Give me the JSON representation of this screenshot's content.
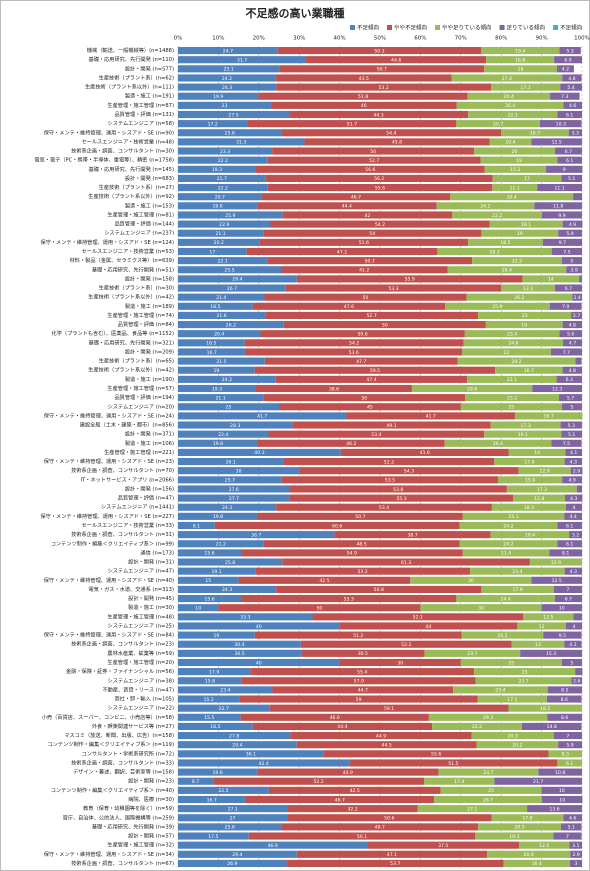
{
  "chart_data": {
    "type": "stacked_barh",
    "title": "不足感の高い業職種",
    "xlim": [
      0,
      100
    ],
    "xticks": [
      {
        "value": 0,
        "label": "0%"
      },
      {
        "value": 10,
        "label": "10%"
      },
      {
        "value": 20,
        "label": "20%"
      },
      {
        "value": 30,
        "label": "30%"
      },
      {
        "value": 40,
        "label": "40%"
      },
      {
        "value": 50,
        "label": "50%"
      },
      {
        "value": 60,
        "label": "60%"
      },
      {
        "value": 70,
        "label": "70%"
      },
      {
        "value": 80,
        "label": "80%"
      },
      {
        "value": 90,
        "label": "90%"
      },
      {
        "value": 100,
        "label": "100%"
      }
    ],
    "grid": true,
    "legend": "top-right",
    "categories": [
      "機械（輸送、一般機械等）(n=1488)",
      "基礎・応用研究、先行開発 (n=110)",
      "設計・開発 (n=577)",
      "生産技術（プラント系）(n=62)",
      "生産技術（プラント系以外）(n=111)",
      "製造・施工 (n=191)",
      "生産管理・施工管理 (n=87)",
      "品質管理・評価 (n=131)",
      "システムエンジニア (n=58)",
      "保守・メンテ・維持管理、運用・シスアド・SE (n=90)",
      "セールスエンジニア・技術営業 (n=48)",
      "技術系企画・調査、コンサルタント (n=30)",
      "電気・電子（PC・携帯・半導体、重電等）、精密 (n=1758)",
      "基礎・応用研究、先行開発 (n=145)",
      "設計・開発 (n=683)",
      "生産技術（プラント系）(n=27)",
      "生産技術（プラント系以外）(n=92)",
      "製造・施工 (n=153)",
      "生産管理・施工管理 (n=81)",
      "品質管理・評価 (n=144)",
      "システムエンジニア (n=237)",
      "保守・メンテ・維持管理、運用・シスアド・SE (n=124)",
      "セールスエンジニア・技術営業 (n=53)",
      "材料・製品（金属、セラミクス等）(n=639)",
      "基礎・応用研究、先行開発 (n=51)",
      "設計・開発 (n=158)",
      "生産技術（プラント系）(n=30)",
      "生産技術（プラント系以外）(n=42)",
      "製造・施工 (n=189)",
      "生産管理・施工管理 (n=74)",
      "品質管理・評価 (n=84)",
      "化学（プラントも含む）、医薬品、食品等 (n=1152)",
      "基礎・応用研究、先行開発 (n=321)",
      "設計・開発 (n=209)",
      "生産技術（プラント系）(n=65)",
      "生産技術（プラント系以外）(n=42)",
      "製造・施工 (n=190)",
      "生産管理・施工管理 (n=57)",
      "品質管理・評価 (n=194)",
      "システムエンジニア (n=20)",
      "保守・メンテ・維持管理、運用・シスアド・SE (n=24)",
      "建設全般（土木・建築・都市）(n=856)",
      "設計・開発 (n=371)",
      "製造・施工 (n=106)",
      "生産管理・施工管理 (n=221)",
      "保守・メンテ・維持管理、運用・シスアド・SE (n=23)",
      "技術系企画・調査、コンサルタント (n=70)",
      "IT・ネットサービス・アプリ (n=2066)",
      "設計・開発 (n=156)",
      "品質管理・評価 (n=47)",
      "システムエンジニア (n=1441)",
      "保守・メンテ・維持管理、運用・シスアド・SE (n=227)",
      "セールスエンジニア・技術営業 (n=33)",
      "技術系企画・調査、コンサルタント (n=31)",
      "コンテンツ制作・編集＜クリエイティブ系＞ (n=99)",
      "通信 (n=173)",
      "設計・開発 (n=31)",
      "システムエンジニア (n=47)",
      "保守・メンテ・維持管理、運用・シスアド・SE (n=40)",
      "電気・ガス・水道、交通系 (n=313)",
      "設計・開発 (n=45)",
      "製造・施工 (n=30)",
      "生産管理・施工管理 (n=48)",
      "システムエンジニア (n=25)",
      "保守・メンテ・維持管理、運用・シスアド・SE (n=84)",
      "技術系企画・調査、コンサルタント (n=23)",
      "農林水産業、鉱業等 (n=59)",
      "生産管理・施工管理 (n=20)",
      "金融・保険・証券・ファイナンシャル (n=56)",
      "システムエンジニア (n=38)",
      "不動産、賃貸・リース (n=47)",
      "商社・卸・輸入 (n=105)",
      "システムエンジニア (n=22)",
      "小売（百貨店、スーパー、コンビニ、小売店等）(n=58)",
      "外食・娯楽関連サービス等 (n=27)",
      "マスコミ（放送、新聞、出版、広告）(n=158)",
      "コンテンツ制作・編集＜クリエイティブ系＞ (n=119)",
      "コンサルタント・学術系研究所 (n=72)",
      "技術系企画・調査、コンサルタント (n=33)",
      "デザイン・著述、翻訳、芸術家等 (n=158)",
      "設計・開発 (n=23)",
      "コンテンツ制作・編集＜クリエイティブ系＞ (n=40)",
      "病院、医療 (n=30)",
      "教育（保育・幼稚園等を除く）(n=59)",
      "官庁、自治体、公的法人、国際機構等 (n=259)",
      "基礎・応用研究、先行開発 (n=39)",
      "設計・開発 (n=57)",
      "生産管理・施工管理 (n=32)",
      "保守・メンテ・維持管理、運用・シスアド・SE (n=34)",
      "技術系企画・調査、コンサルタント (n=67)"
    ],
    "series": [
      {
        "name": "不足傾向",
        "color": "#4f81bd",
        "values": [
          24.7,
          31.7,
          25.1,
          24.2,
          24.3,
          19.9,
          23.0,
          27.5,
          17.2,
          25.6,
          31.3,
          23.3,
          22.2,
          19.3,
          21.7,
          22.2,
          20.7,
          19.6,
          25.9,
          22.9,
          21.1,
          20.2,
          17.0,
          22.1,
          25.5,
          29.4,
          26.7,
          21.4,
          18.5,
          21.6,
          26.2,
          20.4,
          16.5,
          16.7,
          21.5,
          19.0,
          24.2,
          19.3,
          21.1,
          25.0,
          41.7,
          28.3,
          22.4,
          19.8,
          40.3,
          26.1,
          30.0,
          25.7,
          27.6,
          27.7,
          24.3,
          19.8,
          9.1,
          38.7,
          21.2,
          15.6,
          25.8,
          19.1,
          15.0,
          24.3,
          15.6,
          10.0,
          33.3,
          40.0,
          19.0,
          30.4,
          30.5,
          40.0,
          17.9,
          15.8,
          23.4,
          15.2,
          22.7,
          15.5,
          18.5,
          27.8,
          29.4,
          36.1,
          42.4,
          19.6,
          8.7,
          22.5,
          16.7,
          27.1,
          27.0,
          25.6,
          17.5,
          46.9,
          29.4,
          26.9
        ]
      },
      {
        "name": "やや不足傾向",
        "color": "#c0504d",
        "values": [
          50.3,
          44.6,
          50.7,
          43.5,
          53.2,
          51.8,
          46.0,
          44.3,
          51.7,
          54.4,
          45.8,
          50.0,
          52.7,
          56.6,
          56.2,
          55.6,
          46.7,
          44.4,
          42.0,
          54.2,
          54.0,
          51.6,
          47.2,
          50.7,
          41.2,
          55.9,
          53.3,
          50.0,
          47.6,
          52.7,
          50.0,
          50.6,
          54.2,
          53.6,
          47.7,
          59.5,
          47.4,
          38.6,
          50.0,
          45.0,
          41.7,
          49.1,
          53.4,
          46.2,
          41.6,
          52.2,
          54.3,
          53.5,
          53.8,
          55.3,
          53.4,
          50.7,
          60.6,
          38.7,
          48.5,
          54.9,
          61.3,
          53.2,
          42.5,
          50.8,
          53.3,
          50.0,
          52.1,
          44.0,
          51.2,
          52.2,
          30.5,
          30.0,
          55.4,
          57.9,
          44.7,
          59.0,
          59.1,
          46.6,
          44.4,
          44.9,
          44.5,
          55.6,
          51.5,
          44.9,
          52.2,
          42.5,
          46.7,
          32.2,
          50.6,
          48.7,
          56.1,
          37.5,
          47.1,
          53.7
        ]
      },
      {
        "name": "やや足りている傾向",
        "color": "#9bbb59",
        "values": [
          19.4,
          16.8,
          18.0,
          27.4,
          17.1,
          20.4,
          26.4,
          22.1,
          20.7,
          16.7,
          10.4,
          20.0,
          19.0,
          15.2,
          17.0,
          11.1,
          30.4,
          24.2,
          22.2,
          18.1,
          19.0,
          18.5,
          28.3,
          22.2,
          29.4,
          14.0,
          13.3,
          26.2,
          25.9,
          23.0,
          19.0,
          23.4,
          24.6,
          22.0,
          29.2,
          16.7,
          22.1,
          29.8,
          23.2,
          25.0,
          16.7,
          17.3,
          19.1,
          26.4,
          14.0,
          17.4,
          12.9,
          15.9,
          17.3,
          12.8,
          18.3,
          25.1,
          24.2,
          19.4,
          24.2,
          21.4,
          12.9,
          23.4,
          30.0,
          17.9,
          24.4,
          30.0,
          12.5,
          12.0,
          20.2,
          13.0,
          23.7,
          25.0,
          25.0,
          23.7,
          23.4,
          17.1,
          18.2,
          29.3,
          22.2,
          20.3,
          20.2,
          8.3,
          6.1,
          24.7,
          17.4,
          25.0,
          26.7,
          27.1,
          17.8,
          20.5,
          19.3,
          12.5,
          20.6,
          16.4
        ]
      },
      {
        "name": "足りている傾向",
        "color": "#8064a2",
        "values": [
          5.3,
          6.9,
          4.2,
          4.8,
          5.4,
          7.3,
          4.6,
          6.1,
          10.3,
          3.3,
          12.5,
          6.7,
          6.1,
          9.0,
          5.1,
          11.1,
          2.2,
          11.8,
          9.9,
          4.9,
          5.9,
          9.7,
          7.5,
          5.0,
          3.9,
          0.7,
          6.7,
          2.4,
          7.9,
          2.7,
          4.8,
          5.6,
          4.7,
          7.7,
          1.5,
          4.8,
          6.3,
          12.3,
          5.7,
          5.0,
          0,
          5.3,
          5.1,
          7.5,
          4.1,
          4.3,
          2.9,
          4.9,
          1.3,
          4.3,
          4.0,
          4.4,
          6.1,
          3.2,
          6.1,
          8.1,
          0,
          4.3,
          12.5,
          7.0,
          6.7,
          10.0,
          2.1,
          4.0,
          9.5,
          4.3,
          15.3,
          5.0,
          1.8,
          2.6,
          8.5,
          8.6,
          0,
          8.6,
          14.8,
          7.0,
          5.9,
          0,
          0,
          10.8,
          21.7,
          10.0,
          10.0,
          13.6,
          4.6,
          5.1,
          7.0,
          3.1,
          2.9,
          3.0
        ]
      },
      {
        "name": "不足傾向",
        "color": "#4bacc6",
        "values": [
          0,
          0,
          0,
          0,
          0,
          0,
          0,
          0,
          0,
          0,
          0,
          0,
          0,
          0,
          0,
          0,
          0,
          0,
          0,
          0,
          0,
          0,
          0,
          0,
          0,
          0,
          0,
          0,
          0,
          0,
          0,
          0,
          0,
          0,
          0,
          0,
          0,
          0,
          0,
          0,
          0,
          0,
          0,
          0,
          0,
          0,
          0,
          0,
          0,
          0,
          0,
          0,
          0,
          0,
          0,
          0,
          0,
          0,
          0,
          0,
          0,
          0,
          0,
          0,
          0,
          0,
          0,
          0,
          0,
          0,
          0,
          0,
          0,
          0,
          0,
          0,
          0,
          0,
          0,
          0,
          0,
          0,
          0,
          0,
          0,
          0,
          0,
          0,
          0,
          0
        ]
      }
    ]
  }
}
